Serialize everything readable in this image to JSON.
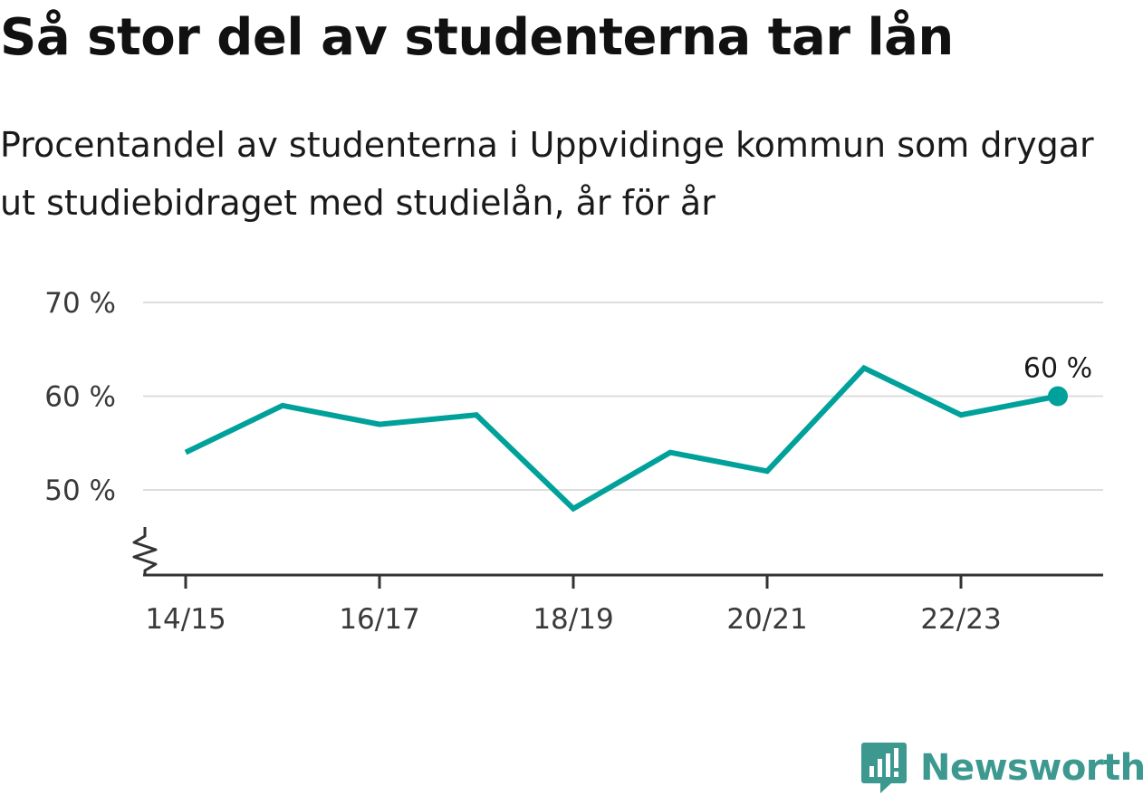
{
  "chart_data": {
    "type": "line",
    "title": "Så stor del av studenterna tar lån",
    "subtitle": "Procentandel av studenterna i Uppvidinge kommun som drygar ut studiebidraget med studielån, år för år",
    "categories": [
      "14/15",
      "15/16",
      "16/17",
      "17/18",
      "18/19",
      "19/20",
      "20/21",
      "21/22",
      "22/23",
      "23/24"
    ],
    "x_tick_labels": [
      "14/15",
      "16/17",
      "18/19",
      "20/21",
      "22/23"
    ],
    "series": [
      {
        "values": [
          54,
          59,
          57,
          58,
          48,
          54,
          52,
          63,
          58,
          60
        ],
        "color": "#00a19a"
      }
    ],
    "y_ticks": [
      50,
      60,
      70
    ],
    "y_tick_labels": [
      "50 %",
      "60 %",
      "70 %"
    ],
    "ylim": [
      40,
      70
    ],
    "y_axis_broken": true,
    "grid": true,
    "last_point_label": "60 %",
    "xlabel": "",
    "ylabel": ""
  },
  "branding": {
    "name": "Newsworthy",
    "color": "#3d9990"
  }
}
